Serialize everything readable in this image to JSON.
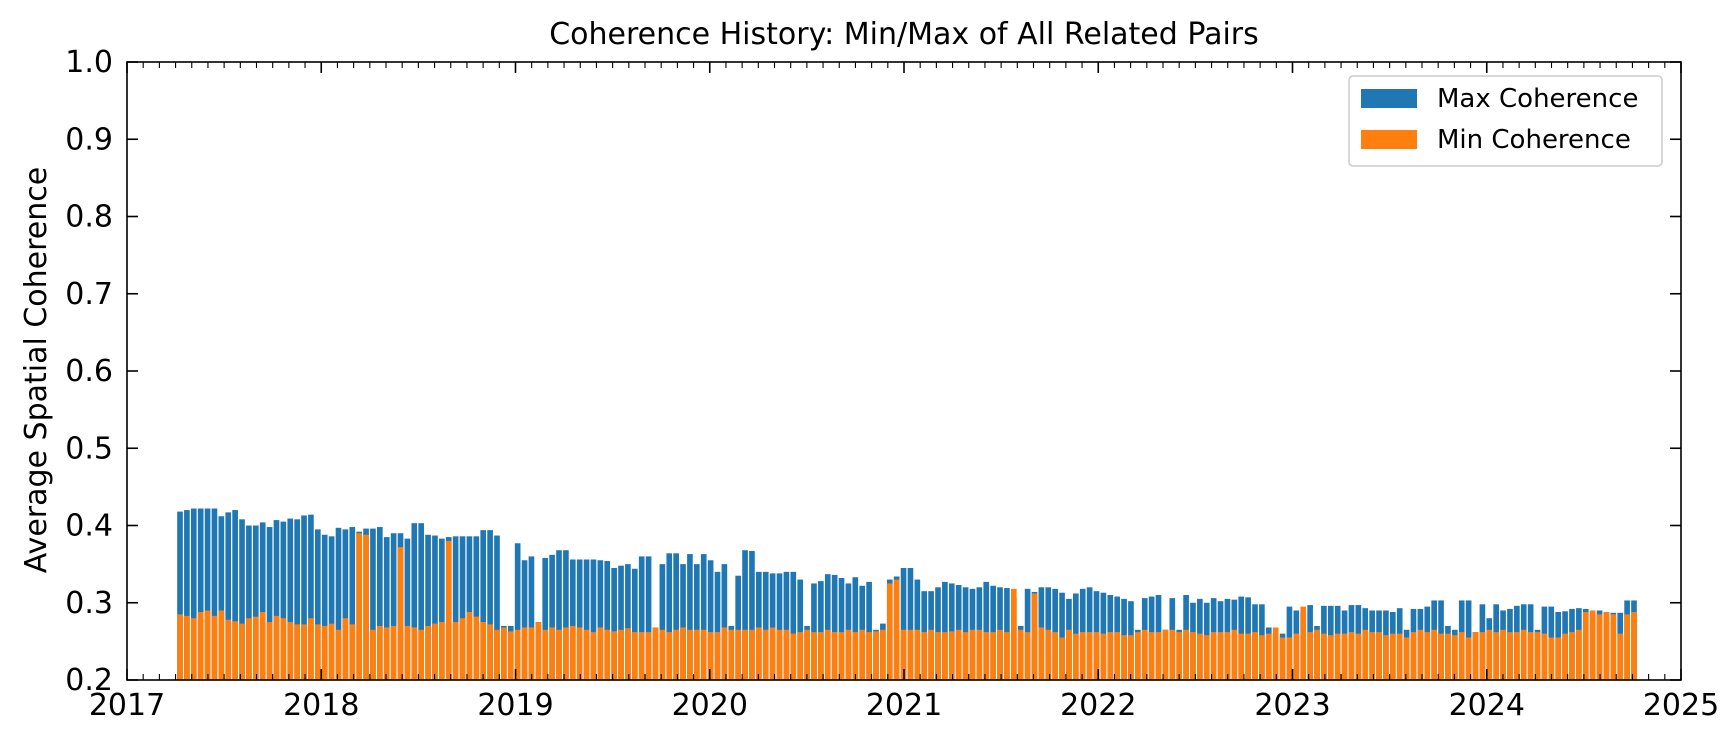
{
  "chart_data": {
    "type": "bar",
    "title": "Coherence History: Min/Max of All Related Pairs",
    "xlabel": "",
    "ylabel": "Average Spatial Coherence",
    "xlim": [
      2017,
      2025
    ],
    "ylim": [
      0.2,
      1.0
    ],
    "x_ticks": [
      "2017",
      "2018",
      "2019",
      "2020",
      "2021",
      "2022",
      "2023",
      "2024",
      "2025"
    ],
    "y_ticks": [
      "0.2",
      "0.3",
      "0.4",
      "0.5",
      "0.6",
      "0.7",
      "0.8",
      "0.9",
      "1.0"
    ],
    "legend_position": "top-right",
    "grid": false,
    "series": [
      {
        "name": "Max Coherence",
        "color": "#1f77b4",
        "values": [
          0.418,
          0.42,
          0.422,
          0.422,
          0.422,
          0.422,
          0.412,
          0.417,
          0.42,
          0.408,
          0.4,
          0.4,
          0.404,
          0.398,
          0.407,
          0.405,
          0.409,
          0.408,
          0.413,
          0.414,
          0.395,
          0.388,
          0.386,
          0.397,
          0.395,
          0.398,
          0.392,
          0.396,
          0.396,
          0.398,
          0.385,
          0.39,
          0.39,
          0.383,
          0.403,
          0.403,
          0.388,
          0.387,
          0.383,
          0.385,
          0.386,
          0.386,
          0.386,
          0.386,
          0.394,
          0.394,
          0.387,
          0.27,
          0.27,
          0.377,
          0.355,
          0.36,
          0.275,
          0.358,
          0.362,
          0.368,
          0.368,
          0.356,
          0.356,
          0.356,
          0.356,
          0.355,
          0.354,
          0.345,
          0.348,
          0.35,
          0.344,
          0.36,
          0.36,
          0.268,
          0.35,
          0.364,
          0.364,
          0.35,
          0.363,
          0.35,
          0.363,
          0.355,
          0.34,
          0.35,
          0.27,
          0.335,
          0.368,
          0.367,
          0.34,
          0.34,
          0.338,
          0.338,
          0.34,
          0.34,
          0.33,
          0.27,
          0.325,
          0.328,
          0.337,
          0.336,
          0.332,
          0.325,
          0.333,
          0.322,
          0.327,
          0.265,
          0.273,
          0.33,
          0.334,
          0.345,
          0.345,
          0.33,
          0.315,
          0.315,
          0.32,
          0.327,
          0.325,
          0.323,
          0.32,
          0.318,
          0.32,
          0.327,
          0.322,
          0.32,
          0.319,
          0.307,
          0.27,
          0.318,
          0.314,
          0.32,
          0.32,
          0.318,
          0.313,
          0.305,
          0.312,
          0.318,
          0.32,
          0.315,
          0.313,
          0.31,
          0.308,
          0.305,
          0.302,
          0.265,
          0.306,
          0.308,
          0.31,
          0.265,
          0.306,
          0.265,
          0.31,
          0.3,
          0.305,
          0.3,
          0.306,
          0.302,
          0.305,
          0.304,
          0.308,
          0.307,
          0.298,
          0.298,
          0.268,
          0.26,
          0.26,
          0.295,
          0.29,
          0.288,
          0.297,
          0.27,
          0.296,
          0.296,
          0.296,
          0.29,
          0.297,
          0.297,
          0.293,
          0.29,
          0.29,
          0.29,
          0.288,
          0.293,
          0.265,
          0.292,
          0.292,
          0.295,
          0.303,
          0.303,
          0.27,
          0.265,
          0.303,
          0.303,
          0.262,
          0.298,
          0.28,
          0.298,
          0.29,
          0.292,
          0.296,
          0.298,
          0.298,
          0.265,
          0.295,
          0.295,
          0.288,
          0.289,
          0.292,
          0.293,
          0.292,
          0.29,
          0.29,
          0.288,
          0.287,
          0.287,
          0.303,
          0.303
        ]
      },
      {
        "name": "Min Coherence",
        "color": "#ff7f0e",
        "values": [
          0.285,
          0.283,
          0.28,
          0.288,
          0.29,
          0.283,
          0.29,
          0.278,
          0.276,
          0.273,
          0.28,
          0.282,
          0.288,
          0.275,
          0.283,
          0.28,
          0.275,
          0.272,
          0.272,
          0.28,
          0.272,
          0.27,
          0.273,
          0.265,
          0.28,
          0.272,
          0.39,
          0.388,
          0.265,
          0.27,
          0.268,
          0.27,
          0.372,
          0.27,
          0.268,
          0.265,
          0.27,
          0.273,
          0.275,
          0.38,
          0.275,
          0.28,
          0.288,
          0.282,
          0.275,
          0.272,
          0.265,
          0.268,
          0.263,
          0.265,
          0.268,
          0.268,
          0.275,
          0.265,
          0.268,
          0.265,
          0.268,
          0.27,
          0.268,
          0.265,
          0.262,
          0.268,
          0.265,
          0.263,
          0.265,
          0.267,
          0.262,
          0.262,
          0.262,
          0.268,
          0.265,
          0.262,
          0.265,
          0.268,
          0.265,
          0.265,
          0.265,
          0.262,
          0.262,
          0.268,
          0.265,
          0.265,
          0.265,
          0.265,
          0.268,
          0.265,
          0.268,
          0.265,
          0.265,
          0.26,
          0.262,
          0.265,
          0.262,
          0.262,
          0.265,
          0.262,
          0.262,
          0.265,
          0.262,
          0.265,
          0.262,
          0.263,
          0.265,
          0.325,
          0.33,
          0.265,
          0.265,
          0.265,
          0.262,
          0.265,
          0.262,
          0.262,
          0.263,
          0.265,
          0.262,
          0.265,
          0.265,
          0.262,
          0.262,
          0.265,
          0.262,
          0.318,
          0.265,
          0.262,
          0.312,
          0.268,
          0.265,
          0.262,
          0.255,
          0.265,
          0.26,
          0.262,
          0.262,
          0.262,
          0.26,
          0.262,
          0.262,
          0.258,
          0.258,
          0.262,
          0.265,
          0.262,
          0.262,
          0.265,
          0.265,
          0.262,
          0.265,
          0.262,
          0.26,
          0.258,
          0.262,
          0.262,
          0.262,
          0.265,
          0.26,
          0.26,
          0.262,
          0.258,
          0.26,
          0.268,
          0.255,
          0.255,
          0.26,
          0.295,
          0.262,
          0.265,
          0.26,
          0.258,
          0.26,
          0.26,
          0.262,
          0.26,
          0.265,
          0.262,
          0.262,
          0.258,
          0.26,
          0.26,
          0.255,
          0.262,
          0.265,
          0.262,
          0.265,
          0.26,
          0.26,
          0.258,
          0.262,
          0.255,
          0.262,
          0.262,
          0.265,
          0.262,
          0.265,
          0.262,
          0.262,
          0.265,
          0.262,
          0.262,
          0.26,
          0.255,
          0.255,
          0.26,
          0.262,
          0.265,
          0.288,
          0.29,
          0.285,
          0.288,
          0.285,
          0.26,
          0.285,
          0.288
        ]
      }
    ]
  }
}
